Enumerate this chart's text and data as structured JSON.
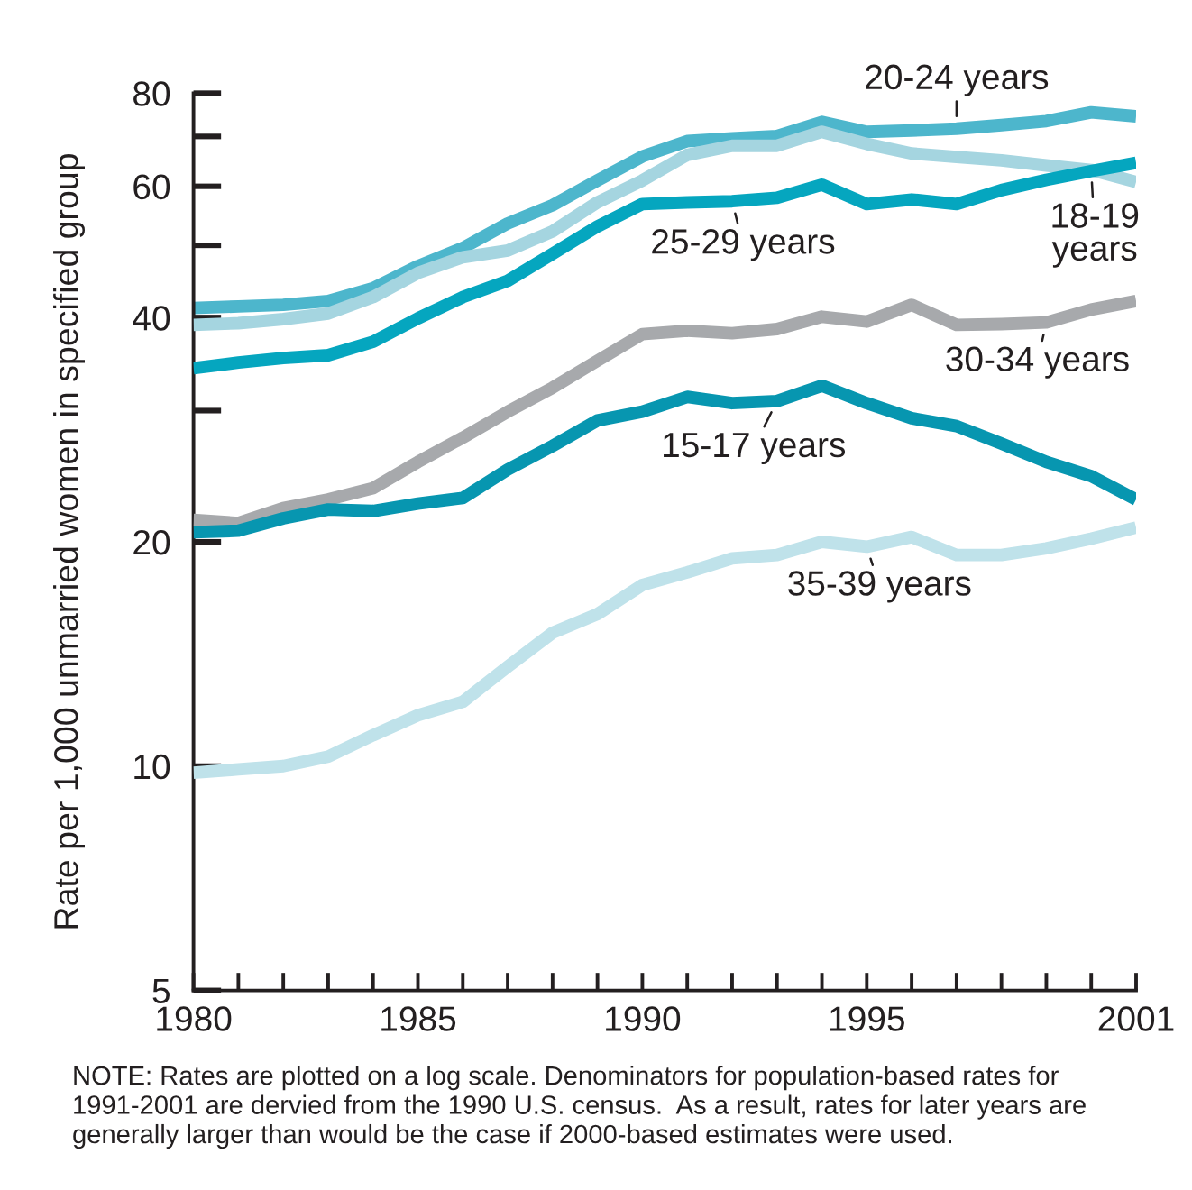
{
  "chart_data": {
    "type": "line",
    "ylabel": "Rate per 1,000 unmarried women in specified group",
    "x": [
      1980,
      1981,
      1982,
      1983,
      1984,
      1985,
      1986,
      1987,
      1988,
      1989,
      1990,
      1991,
      1992,
      1993,
      1994,
      1995,
      1996,
      1997,
      1998,
      1999,
      2000,
      2001
    ],
    "series": [
      {
        "name": "20-24 years",
        "color": "#4db6cc",
        "values": [
          41.2,
          41.4,
          41.6,
          42.1,
          43.8,
          46.9,
          49.6,
          53.5,
          56.6,
          61.1,
          65.8,
          69.0,
          69.6,
          70.1,
          73.2,
          71.0,
          71.3,
          71.7,
          72.5,
          73.4,
          75.4,
          74.5
        ]
      },
      {
        "name": "18-19\nyears",
        "color": "#a5d5e0",
        "values": [
          39.1,
          39.3,
          39.8,
          40.5,
          42.6,
          45.9,
          48.2,
          49.2,
          52.2,
          57.1,
          61.1,
          66.1,
          68.0,
          68.0,
          71.0,
          68.4,
          66.4,
          65.7,
          65.0,
          64.0,
          63.1,
          60.8
        ]
      },
      {
        "name": "25-29 years",
        "color": "#05a6bf",
        "values": [
          34.2,
          34.8,
          35.3,
          35.6,
          37.1,
          39.9,
          42.6,
          44.8,
          48.7,
          53.0,
          56.8,
          57.1,
          57.3,
          57.9,
          60.3,
          56.8,
          57.6,
          56.8,
          59.3,
          61.2,
          62.9,
          64.5
        ]
      },
      {
        "name": "30-34 years",
        "color": "#a7a9ac",
        "values": [
          21.4,
          21.2,
          22.2,
          22.8,
          23.6,
          25.6,
          27.6,
          29.9,
          32.2,
          35.0,
          38.0,
          38.4,
          38.1,
          38.6,
          40.1,
          39.5,
          41.6,
          39.1,
          39.2,
          39.4,
          41.0,
          42.1
        ]
      },
      {
        "name": "15-17 years",
        "color": "#0796b0",
        "values": [
          20.6,
          20.7,
          21.5,
          22.1,
          22.0,
          22.5,
          22.9,
          25.0,
          26.9,
          29.1,
          29.9,
          31.3,
          30.7,
          30.9,
          32.4,
          30.7,
          29.3,
          28.6,
          27.1,
          25.6,
          24.5,
          22.8
        ]
      },
      {
        "name": "35-39 years",
        "color": "#bfe2ea",
        "values": [
          9.8,
          9.9,
          10.0,
          10.3,
          11.0,
          11.7,
          12.2,
          13.6,
          15.1,
          16.0,
          17.5,
          18.2,
          19.0,
          19.2,
          20.0,
          19.7,
          20.3,
          19.2,
          19.2,
          19.6,
          20.2,
          20.9
        ]
      }
    ],
    "xlim": [
      1980,
      2001
    ],
    "xticks": [
      1980,
      {
        "value": 1981,
        "label": null
      },
      {
        "value": 1982,
        "label": null
      },
      {
        "value": 1983,
        "label": null
      },
      {
        "value": 1984,
        "label": null
      },
      1985,
      {
        "value": 1986,
        "label": null
      },
      {
        "value": 1987,
        "label": null
      },
      {
        "value": 1988,
        "label": null
      },
      {
        "value": 1989,
        "label": null
      },
      1990,
      {
        "value": 1991,
        "label": null
      },
      {
        "value": 1992,
        "label": null
      },
      {
        "value": 1993,
        "label": null
      },
      {
        "value": 1994,
        "label": null
      },
      1995,
      {
        "value": 1996,
        "label": null
      },
      {
        "value": 1997,
        "label": null
      },
      {
        "value": 1998,
        "label": null
      },
      {
        "value": 1999,
        "label": null
      },
      {
        "value": 2000,
        "label": null
      },
      2001
    ],
    "ylim": [
      5,
      80
    ],
    "yticks": [
      5,
      10,
      20,
      {
        "value": 30,
        "label": null
      },
      40,
      {
        "value": 50,
        "label": null
      },
      60,
      {
        "value": 70,
        "label": null
      },
      80
    ],
    "log": "y",
    "annotations": [
      "NOTE: Rates are plotted on a log scale. Denominators for population-based rates for\n1991-2001 are dervied from the 1990 U.S. census.  As a result, rates for later years are\ngenerally larger than would be the case if 2000-based estimates were used."
    ]
  }
}
